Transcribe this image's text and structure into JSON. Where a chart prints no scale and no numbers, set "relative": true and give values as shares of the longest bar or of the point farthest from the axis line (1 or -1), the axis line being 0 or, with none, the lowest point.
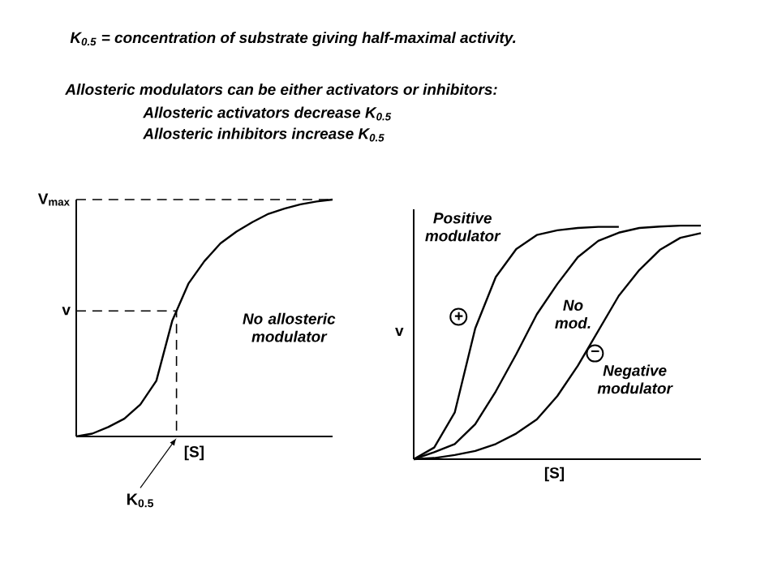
{
  "chart_data": [
    {
      "type": "line",
      "title": "K$_{0.5}$ = concentration of substrate giving half-maximal activity.",
      "subtitle": "Allosteric modulators can be either activators or inhibitors:",
      "xlabel": "[S]",
      "relative": true,
      "annotations": [
        "Allosteric activators decrease K$_{0.5}$",
        "Allosteric inhibitors increase K$_{0.5}$",
        "No allosteric modulator",
        "K$_{0.5}$",
        "V$_{max}$",
        "v"
      ],
      "categories": [
        null,
        null,
        null,
        null,
        null,
        null,
        null,
        null,
        null,
        null,
        null,
        null,
        null,
        null,
        null,
        null,
        null
      ],
      "series": [
        {
          "color": "#000000",
          "values": [
            0,
            0.012,
            0.04,
            0.075,
            0.135,
            0.235,
            0.49,
            0.645,
            0.74,
            0.815,
            0.865,
            0.905,
            0.94,
            0.962,
            0.98,
            0.992,
            1.0
          ]
        }
      ]
    },
    {
      "type": "line",
      "relative": true,
      "xlabel": "[S]",
      "ylabel": "v",
      "categories": [
        null,
        null,
        null,
        null,
        null,
        null,
        null,
        null,
        null,
        null,
        null,
        null,
        null,
        null,
        null
      ],
      "annotations": [
        "+",
        "−"
      ],
      "series": [
        {
          "name": "Positive modulator",
          "color": "#000000",
          "values": [
            0,
            0.05,
            0.2,
            0.56,
            0.78,
            0.9,
            0.96,
            0.98,
            0.99,
            0.995,
            0.995,
            null,
            null,
            null,
            null
          ]
        },
        {
          "name": "No mod.",
          "color": "#000000",
          "values": [
            0,
            0.03,
            0.065,
            0.15,
            0.29,
            0.45,
            0.62,
            0.75,
            0.865,
            0.935,
            0.97,
            0.99,
            0.996,
            1.0,
            1.0
          ]
        },
        {
          "name": "Negative modulator",
          "color": "#000000",
          "values": [
            0,
            0.005,
            0.018,
            0.035,
            0.065,
            0.11,
            0.17,
            0.27,
            0.4,
            0.55,
            0.7,
            0.81,
            0.896,
            0.948,
            0.968
          ]
        }
      ]
    }
  ]
}
